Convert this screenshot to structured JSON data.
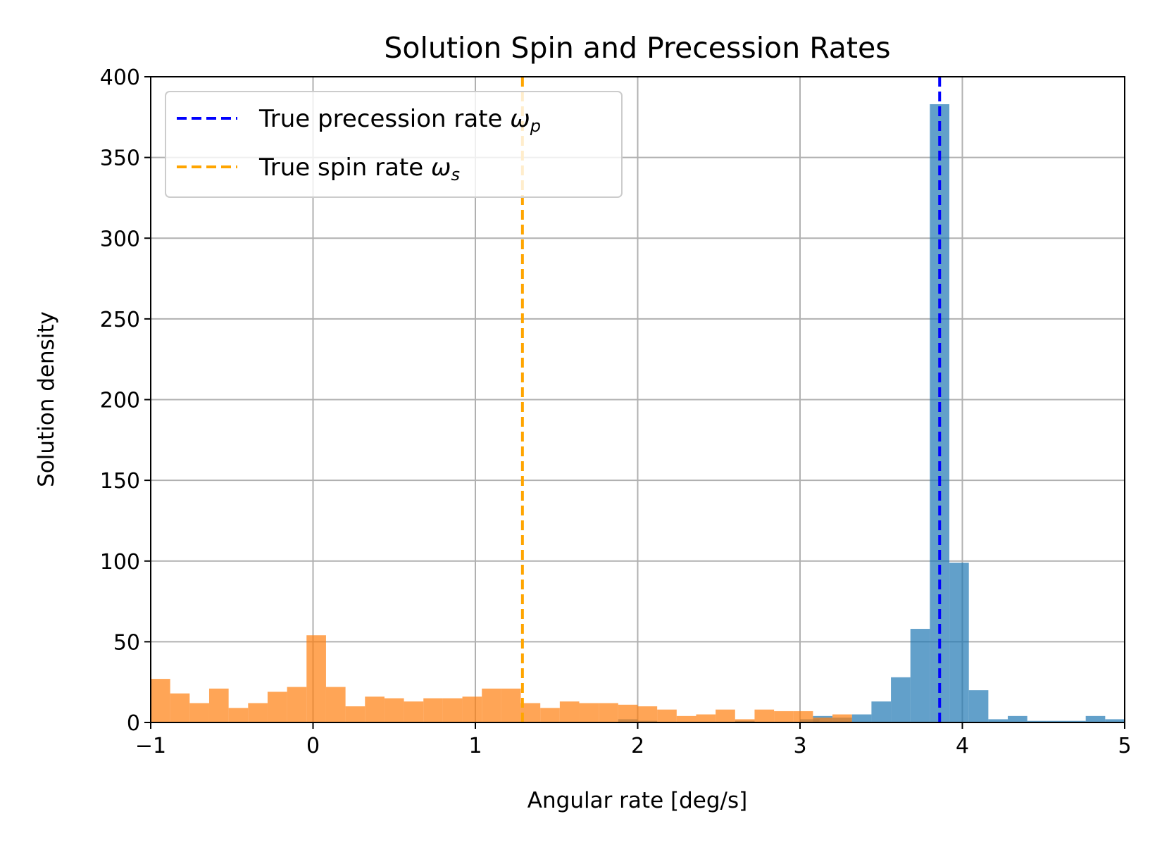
{
  "chart_data": {
    "type": "bar",
    "title": "Solution Spin and Precession Rates",
    "xlabel": "Angular rate [deg/s]",
    "ylabel": "Solution density",
    "xlim": [
      -1,
      5
    ],
    "ylim": [
      0,
      400
    ],
    "xticks": [
      "−1",
      "0",
      "1",
      "2",
      "3",
      "4",
      "5"
    ],
    "xtick_values": [
      -1,
      0,
      1,
      2,
      3,
      4,
      5
    ],
    "yticks": [
      "0",
      "50",
      "100",
      "150",
      "200",
      "250",
      "300",
      "350",
      "400"
    ],
    "ytick_values": [
      0,
      50,
      100,
      150,
      200,
      250,
      300,
      350,
      400
    ],
    "grid": true,
    "legend_position": "top-left",
    "bin_width": 0.12,
    "series": [
      {
        "key": "precession",
        "color": "#1f77b4",
        "alpha": 0.7,
        "bins": [
          {
            "x": 1.88,
            "y": 2
          },
          {
            "x": 2.0,
            "y": 1
          },
          {
            "x": 2.6,
            "y": 1
          },
          {
            "x": 3.0,
            "y": 2
          },
          {
            "x": 3.08,
            "y": 4
          },
          {
            "x": 3.2,
            "y": 3
          },
          {
            "x": 3.32,
            "y": 5
          },
          {
            "x": 3.44,
            "y": 13
          },
          {
            "x": 3.56,
            "y": 28
          },
          {
            "x": 3.68,
            "y": 58
          },
          {
            "x": 3.8,
            "y": 383
          },
          {
            "x": 3.92,
            "y": 99
          },
          {
            "x": 4.04,
            "y": 20
          },
          {
            "x": 4.16,
            "y": 2
          },
          {
            "x": 4.28,
            "y": 4
          },
          {
            "x": 4.4,
            "y": 1
          },
          {
            "x": 4.52,
            "y": 1
          },
          {
            "x": 4.64,
            "y": 1
          },
          {
            "x": 4.76,
            "y": 4
          },
          {
            "x": 4.88,
            "y": 2
          }
        ]
      },
      {
        "key": "spin",
        "color": "#ff7f0e",
        "alpha": 0.7,
        "bins": [
          {
            "x": -1.0,
            "y": 27
          },
          {
            "x": -0.88,
            "y": 18
          },
          {
            "x": -0.76,
            "y": 12
          },
          {
            "x": -0.64,
            "y": 21
          },
          {
            "x": -0.52,
            "y": 9
          },
          {
            "x": -0.4,
            "y": 12
          },
          {
            "x": -0.28,
            "y": 19
          },
          {
            "x": -0.16,
            "y": 22
          },
          {
            "x": -0.04,
            "y": 54
          },
          {
            "x": 0.08,
            "y": 22
          },
          {
            "x": 0.2,
            "y": 10
          },
          {
            "x": 0.32,
            "y": 16
          },
          {
            "x": 0.44,
            "y": 15
          },
          {
            "x": 0.56,
            "y": 13
          },
          {
            "x": 0.68,
            "y": 15
          },
          {
            "x": 0.8,
            "y": 15
          },
          {
            "x": 0.92,
            "y": 16
          },
          {
            "x": 1.04,
            "y": 21
          },
          {
            "x": 1.16,
            "y": 21
          },
          {
            "x": 1.28,
            "y": 12
          },
          {
            "x": 1.4,
            "y": 9
          },
          {
            "x": 1.52,
            "y": 13
          },
          {
            "x": 1.64,
            "y": 12
          },
          {
            "x": 1.76,
            "y": 12
          },
          {
            "x": 1.88,
            "y": 11
          },
          {
            "x": 2.0,
            "y": 10
          },
          {
            "x": 2.12,
            "y": 8
          },
          {
            "x": 2.24,
            "y": 4
          },
          {
            "x": 2.36,
            "y": 5
          },
          {
            "x": 2.48,
            "y": 8
          },
          {
            "x": 2.6,
            "y": 2
          },
          {
            "x": 2.72,
            "y": 8
          },
          {
            "x": 2.84,
            "y": 7
          },
          {
            "x": 2.96,
            "y": 7
          },
          {
            "x": 3.08,
            "y": 3
          },
          {
            "x": 3.2,
            "y": 5
          }
        ]
      }
    ],
    "reference_lines": [
      {
        "key": "precession",
        "label": "True precession rate",
        "symbol": "ω",
        "subscript": "p",
        "x": 3.86,
        "color": "#0000ff"
      },
      {
        "key": "spin",
        "label": "True spin rate",
        "symbol": "ω",
        "subscript": "s",
        "x": 1.29,
        "color": "#ffa500"
      }
    ]
  }
}
